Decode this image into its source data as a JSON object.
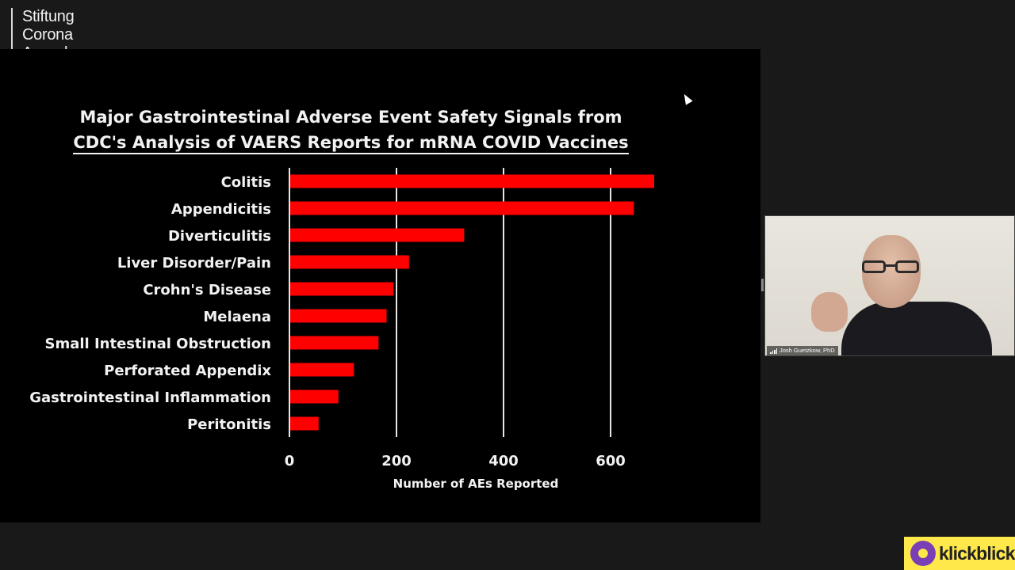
{
  "logo": {
    "lines": [
      "Stiftung",
      "Corona",
      "Ausschuss"
    ]
  },
  "slide": {
    "title_line1": "Major Gastrointestinal Adverse Event Safety Signals from",
    "title_line2": "CDC's Analysis of VAERS Reports for mRNA COVID Vaccines"
  },
  "chart_data": {
    "type": "bar",
    "orientation": "horizontal",
    "title": "Major Gastrointestinal Adverse Event Safety Signals from CDC's Analysis of VAERS Reports for mRNA COVID Vaccines",
    "categories": [
      "Colitis",
      "Appendicitis",
      "Diverticulitis",
      "Liver Disorder/Pain",
      "Crohn's Disease",
      "Melaena",
      "Small Intestinal Obstruction",
      "Perforated Appendix",
      "Gastrointestinal Inflammation",
      "Peritonitis"
    ],
    "values": [
      680,
      642,
      325,
      222,
      193,
      180,
      165,
      119,
      90,
      53
    ],
    "xlabel": "Number of AEs Reported",
    "ylabel": "",
    "xlim": [
      0,
      700
    ],
    "ticks": [
      0,
      200,
      400,
      600
    ],
    "grid": true,
    "bar_color": "#ff0000"
  },
  "video": {
    "name": "Josh Guetzkow, PhD"
  },
  "badge": {
    "text": "klickblick"
  },
  "colors": {
    "background": "#191919",
    "slide": "#000000",
    "bar": "#ff0000",
    "badge": "#ffe84a",
    "badge_icon": "#7b3fb5"
  }
}
